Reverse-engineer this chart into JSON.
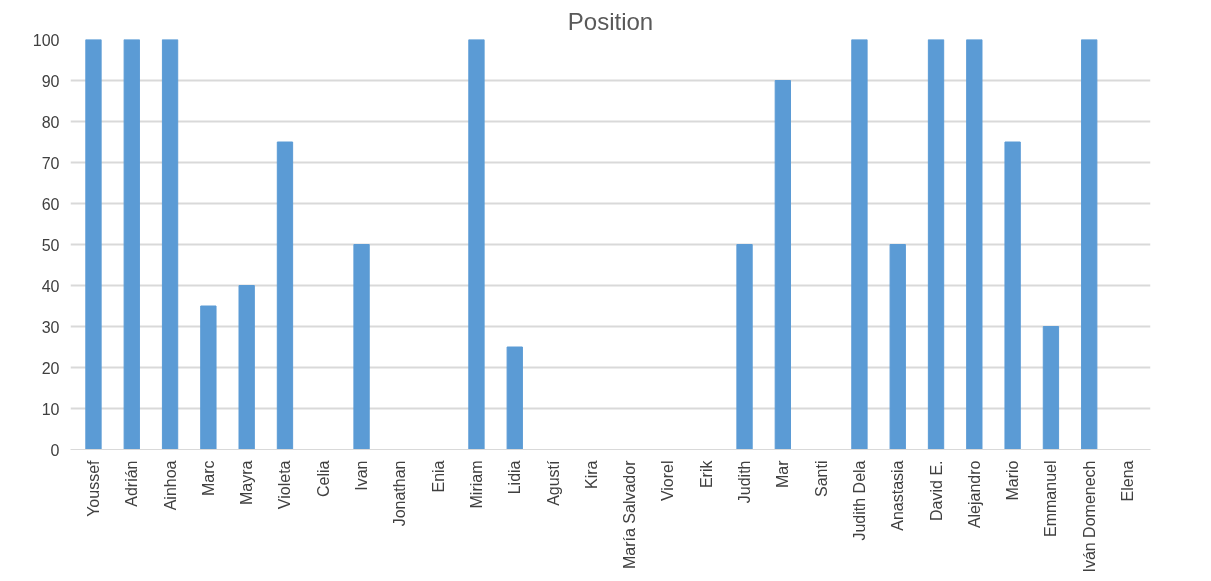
{
  "chart_data": {
    "type": "bar",
    "title": "Position",
    "categories": [
      "Youssef",
      "Adrián",
      "Ainhoa",
      "Marc",
      "Mayra",
      "Violeta",
      "Celia",
      "Ivan",
      "Jonathan",
      "Enia",
      "Miriam",
      "Lidia",
      "Agustí",
      "Kira",
      "María Salvador",
      "Viorel",
      "Erik",
      "Judith",
      "Mar",
      "Santi",
      "Judith Dela",
      "Anastasia",
      "David E.",
      "Alejandro",
      "Mario",
      "Emmanuel",
      "Iván Domenech",
      "Elena"
    ],
    "values": [
      100,
      100,
      100,
      35,
      40,
      75,
      0,
      50,
      null,
      0,
      100,
      25,
      0,
      0,
      0,
      0,
      0,
      50,
      90,
      0,
      100,
      50,
      100,
      100,
      75,
      30,
      100,
      0
    ],
    "color": "#5b9bd5",
    "ylim": [
      0,
      100
    ],
    "yticks": [
      0,
      10,
      20,
      30,
      40,
      50,
      60,
      70,
      80,
      90,
      100
    ],
    "grid": "y"
  }
}
